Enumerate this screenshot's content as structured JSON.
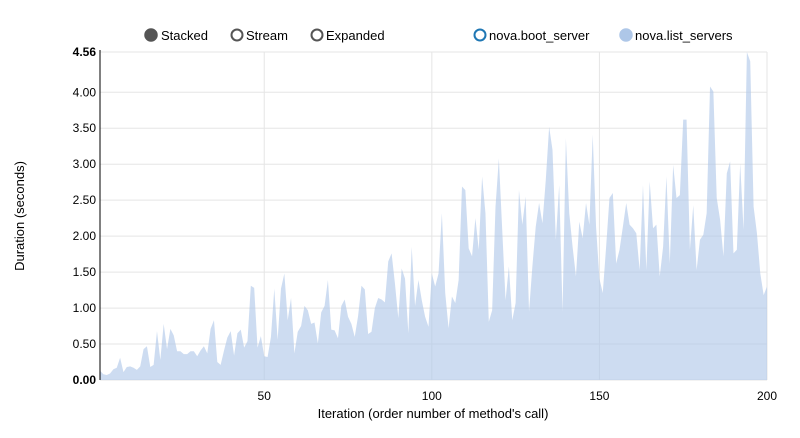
{
  "controls": {
    "items": [
      {
        "label": "Stacked",
        "selected": true
      },
      {
        "label": "Stream",
        "selected": false
      },
      {
        "label": "Expanded",
        "selected": false
      }
    ]
  },
  "chart_data": {
    "type": "area",
    "stacked": true,
    "xlabel": "Iteration (order number of method's call)",
    "ylabel": "Duration (seconds)",
    "xlim": [
      1,
      200
    ],
    "ylim": [
      0,
      4.56
    ],
    "x_ticks": [
      "50",
      "100",
      "150",
      "200"
    ],
    "y_ticks": [
      "0.00",
      "0.50",
      "1.00",
      "1.50",
      "2.00",
      "2.50",
      "3.00",
      "3.50",
      "4.00",
      "4.56"
    ],
    "grid": true,
    "legend_position": "top-right",
    "legend": [
      {
        "name": "nova.boot_server",
        "color": "#1f77b4",
        "enabled": false
      },
      {
        "name": "nova.list_servers",
        "color": "#aec7e8",
        "enabled": true
      }
    ],
    "series": [
      {
        "name": "nova.list_servers",
        "color": "#aec7e8",
        "values": [
          0.13,
          0.08,
          0.07,
          0.09,
          0.15,
          0.17,
          0.31,
          0.11,
          0.18,
          0.19,
          0.17,
          0.14,
          0.19,
          0.43,
          0.47,
          0.18,
          0.21,
          0.68,
          0.28,
          0.78,
          0.43,
          0.71,
          0.62,
          0.4,
          0.4,
          0.36,
          0.36,
          0.4,
          0.4,
          0.33,
          0.41,
          0.47,
          0.37,
          0.71,
          0.83,
          0.25,
          0.21,
          0.41,
          0.59,
          0.68,
          0.34,
          0.65,
          0.7,
          0.45,
          0.54,
          1.31,
          1.28,
          0.45,
          0.61,
          0.33,
          0.32,
          0.6,
          1.27,
          0.56,
          1.27,
          1.48,
          0.83,
          1.14,
          0.37,
          0.67,
          0.75,
          1.03,
          0.97,
          0.78,
          0.8,
          0.51,
          0.94,
          1.03,
          1.39,
          0.7,
          0.69,
          0.58,
          1.03,
          1.12,
          0.88,
          0.78,
          0.6,
          0.89,
          1.31,
          1.26,
          0.64,
          0.67,
          1.0,
          1.14,
          1.12,
          1.08,
          1.65,
          1.76,
          1.34,
          0.86,
          1.55,
          1.41,
          0.65,
          1.85,
          1.03,
          1.39,
          1.11,
          0.88,
          0.74,
          1.48,
          1.3,
          1.48,
          2.32,
          1.21,
          0.72,
          1.16,
          1.07,
          1.39,
          2.69,
          2.64,
          1.83,
          1.72,
          2.25,
          1.81,
          2.83,
          2.32,
          0.81,
          0.97,
          2.41,
          3.08,
          2.09,
          1.11,
          1.58,
          0.83,
          1.07,
          2.64,
          2.16,
          2.55,
          0.95,
          1.58,
          2.13,
          2.46,
          2.18,
          2.78,
          3.52,
          3.2,
          1.95,
          2.71,
          0.95,
          3.36,
          2.32,
          1.85,
          1.44,
          2.2,
          1.97,
          2.46,
          2.16,
          3.41,
          2.13,
          1.41,
          1.21,
          1.85,
          2.53,
          2.6,
          1.62,
          1.81,
          2.13,
          2.46,
          2.16,
          2.11,
          2.04,
          1.53,
          2.71,
          1.53,
          2.76,
          2.11,
          2.16,
          1.44,
          1.85,
          2.83,
          1.62,
          2.99,
          2.53,
          2.57,
          3.62,
          3.62,
          1.81,
          2.43,
          1.53,
          1.95,
          2.02,
          2.32,
          4.08,
          4.01,
          2.53,
          2.23,
          1.72,
          2.87,
          3.04,
          1.76,
          1.81,
          3.01,
          2.09,
          4.56,
          4.43,
          2.41,
          2.04,
          1.48,
          1.18,
          1.3
        ]
      }
    ]
  }
}
